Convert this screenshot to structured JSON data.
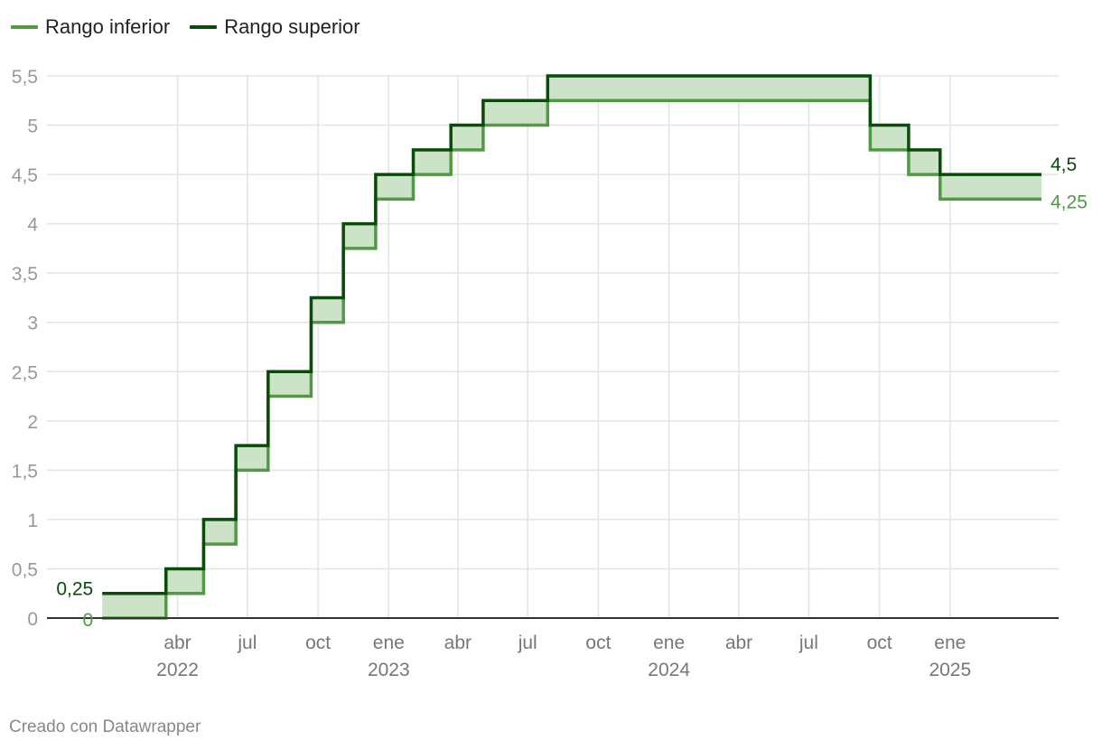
{
  "legend": {
    "lower_label": "Rango inferior",
    "upper_label": "Rango superior"
  },
  "footer": {
    "credit": "Creado con Datawrapper"
  },
  "colors": {
    "lower": "#529946",
    "upper": "#0a4a0a",
    "band": "#cde3c8",
    "grid": "#e3e3e3",
    "axis": "#333333"
  },
  "chart_data": {
    "type": "line",
    "subtype": "step-range",
    "title": "",
    "xlabel": "",
    "ylabel": "",
    "xlim": [
      "2022-01-01",
      "2025-04-30"
    ],
    "ylim": [
      0,
      5.5
    ],
    "grid": true,
    "legend_position": "top-left",
    "y_ticks": [
      "0",
      "0,5",
      "1",
      "1,5",
      "2",
      "2,5",
      "3",
      "3,5",
      "4",
      "4,5",
      "5",
      "5,5"
    ],
    "x_ticks": [
      {
        "date": "2022-04-01",
        "label": "abr"
      },
      {
        "date": "2022-07-01",
        "label": "jul"
      },
      {
        "date": "2022-10-01",
        "label": "oct"
      },
      {
        "date": "2023-01-01",
        "label": "ene"
      },
      {
        "date": "2023-04-01",
        "label": "abr"
      },
      {
        "date": "2023-07-01",
        "label": "jul"
      },
      {
        "date": "2023-10-01",
        "label": "oct"
      },
      {
        "date": "2024-01-01",
        "label": "ene"
      },
      {
        "date": "2024-04-01",
        "label": "abr"
      },
      {
        "date": "2024-07-01",
        "label": "jul"
      },
      {
        "date": "2024-10-01",
        "label": "oct"
      },
      {
        "date": "2025-01-01",
        "label": "ene"
      }
    ],
    "year_labels": [
      {
        "date": "2022-04-01",
        "label": "2022"
      },
      {
        "date": "2023-01-01",
        "label": "2023"
      },
      {
        "date": "2024-01-01",
        "label": "2024"
      },
      {
        "date": "2025-01-01",
        "label": "2025"
      }
    ],
    "series": [
      {
        "name": "Rango inferior",
        "points": [
          {
            "date": "2022-01-01",
            "value": 0
          },
          {
            "date": "2022-03-17",
            "value": 0.25
          },
          {
            "date": "2022-05-05",
            "value": 0.75
          },
          {
            "date": "2022-06-16",
            "value": 1.5
          },
          {
            "date": "2022-07-28",
            "value": 2.25
          },
          {
            "date": "2022-09-22",
            "value": 3
          },
          {
            "date": "2022-11-03",
            "value": 3.75
          },
          {
            "date": "2022-12-15",
            "value": 4.25
          },
          {
            "date": "2023-02-02",
            "value": 4.5
          },
          {
            "date": "2023-03-23",
            "value": 4.75
          },
          {
            "date": "2023-05-04",
            "value": 5
          },
          {
            "date": "2023-07-27",
            "value": 5.25
          },
          {
            "date": "2024-09-19",
            "value": 4.75
          },
          {
            "date": "2024-11-08",
            "value": 4.5
          },
          {
            "date": "2024-12-19",
            "value": 4.25
          },
          {
            "date": "2025-04-30",
            "value": 4.25
          }
        ],
        "start_label": "0",
        "end_label": "4,25"
      },
      {
        "name": "Rango superior",
        "points": [
          {
            "date": "2022-01-01",
            "value": 0.25
          },
          {
            "date": "2022-03-17",
            "value": 0.5
          },
          {
            "date": "2022-05-05",
            "value": 1
          },
          {
            "date": "2022-06-16",
            "value": 1.75
          },
          {
            "date": "2022-07-28",
            "value": 2.5
          },
          {
            "date": "2022-09-22",
            "value": 3.25
          },
          {
            "date": "2022-11-03",
            "value": 4
          },
          {
            "date": "2022-12-15",
            "value": 4.5
          },
          {
            "date": "2023-02-02",
            "value": 4.75
          },
          {
            "date": "2023-03-23",
            "value": 5
          },
          {
            "date": "2023-05-04",
            "value": 5.25
          },
          {
            "date": "2023-07-27",
            "value": 5.5
          },
          {
            "date": "2024-09-19",
            "value": 5
          },
          {
            "date": "2024-11-08",
            "value": 4.75
          },
          {
            "date": "2024-12-19",
            "value": 4.5
          },
          {
            "date": "2025-04-30",
            "value": 4.5
          }
        ],
        "start_label": "0,25",
        "end_label": "4,5"
      }
    ]
  }
}
